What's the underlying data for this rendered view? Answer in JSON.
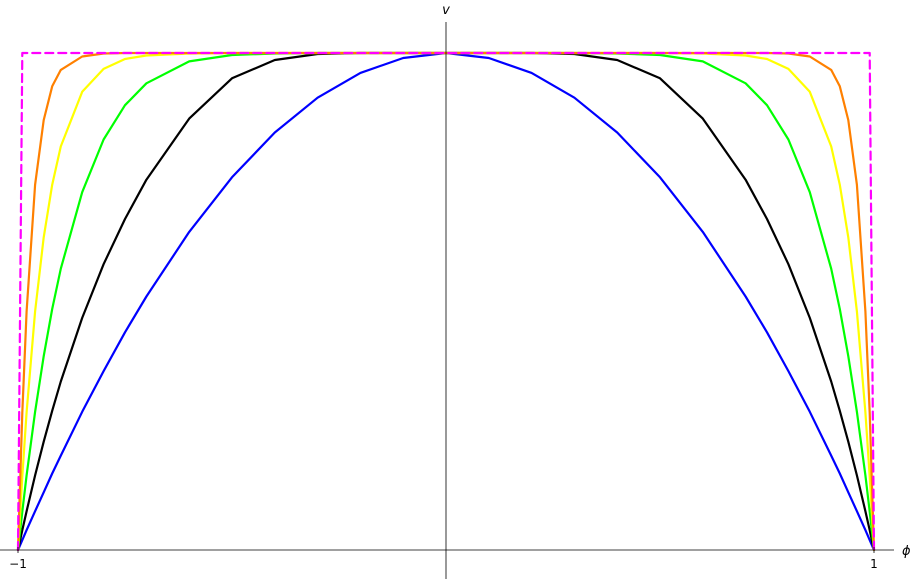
{
  "chart_data": {
    "type": "line",
    "xlabel": "ϕ",
    "ylabel": "v",
    "xlim": [
      -1,
      1
    ],
    "ylim": [
      0,
      1
    ],
    "x_ticks": [
      "−1",
      "1"
    ],
    "grid": false,
    "legend": "none",
    "x": [
      -1,
      -0.99,
      -0.98,
      -0.96,
      -0.94,
      -0.92,
      -0.9,
      -0.85,
      -0.8,
      -0.75,
      -0.7,
      -0.6,
      -0.5,
      -0.4,
      -0.3,
      -0.2,
      -0.1,
      0,
      0.1,
      0.2,
      0.3,
      0.4,
      0.5,
      0.6,
      0.7,
      0.75,
      0.8,
      0.85,
      0.9,
      0.92,
      0.94,
      0.96,
      0.98,
      0.99,
      1
    ],
    "series": [
      {
        "color": "#0000ff",
        "style": "solid",
        "values": [
          0,
          0.02,
          0.04,
          0.078,
          0.116,
          0.154,
          0.19,
          0.278,
          0.36,
          0.438,
          0.51,
          0.64,
          0.75,
          0.84,
          0.91,
          0.96,
          0.99,
          1,
          0.99,
          0.96,
          0.91,
          0.84,
          0.75,
          0.64,
          0.51,
          0.438,
          0.36,
          0.278,
          0.19,
          0.154,
          0.116,
          0.078,
          0.04,
          0.02,
          0
        ]
      },
      {
        "color": "#000000",
        "style": "solid",
        "values": [
          0,
          0.04,
          0.078,
          0.15,
          0.218,
          0.28,
          0.339,
          0.467,
          0.575,
          0.666,
          0.745,
          0.868,
          0.949,
          0.986,
          0.998,
          1,
          1,
          1,
          1,
          1,
          0.998,
          0.986,
          0.949,
          0.868,
          0.745,
          0.666,
          0.575,
          0.467,
          0.339,
          0.28,
          0.218,
          0.15,
          0.078,
          0.04,
          0
        ]
      },
      {
        "color": "#00ff00",
        "style": "solid",
        "values": [
          0,
          0.077,
          0.15,
          0.278,
          0.39,
          0.485,
          0.566,
          0.72,
          0.826,
          0.895,
          0.939,
          0.983,
          0.996,
          0.999,
          1,
          1,
          1,
          1,
          1,
          1,
          1,
          0.999,
          0.996,
          0.983,
          0.939,
          0.895,
          0.826,
          0.72,
          0.566,
          0.485,
          0.39,
          0.278,
          0.15,
          0.077,
          0
        ]
      },
      {
        "color": "#ffff00",
        "style": "solid",
        "values": [
          0,
          0.148,
          0.277,
          0.48,
          0.629,
          0.735,
          0.812,
          0.922,
          0.968,
          0.988,
          0.995,
          0.999,
          1,
          1,
          1,
          1,
          1,
          1,
          1,
          1,
          1,
          1,
          1,
          0.999,
          0.995,
          0.988,
          0.968,
          0.922,
          0.812,
          0.735,
          0.629,
          0.48,
          0.277,
          0.148,
          0
        ]
      },
      {
        "color": "#ff8000",
        "style": "solid",
        "values": [
          0,
          0.276,
          0.48,
          0.735,
          0.865,
          0.933,
          0.966,
          0.993,
          0.999,
          1,
          1,
          1,
          1,
          1,
          1,
          1,
          1,
          1,
          1,
          1,
          1,
          1,
          1,
          1,
          1,
          1,
          0.999,
          0.993,
          0.966,
          0.933,
          0.865,
          0.735,
          0.48,
          0.276,
          0
        ]
      },
      {
        "color": "#ff00ff",
        "style": "dashed",
        "values": [
          0,
          1,
          1,
          1,
          1,
          1,
          1,
          1,
          1,
          1,
          1,
          1,
          1,
          1,
          1,
          1,
          1,
          1,
          1,
          1,
          1,
          1,
          1,
          1,
          1,
          1,
          1,
          1,
          1,
          1,
          1,
          1,
          1,
          1,
          0
        ]
      }
    ]
  }
}
